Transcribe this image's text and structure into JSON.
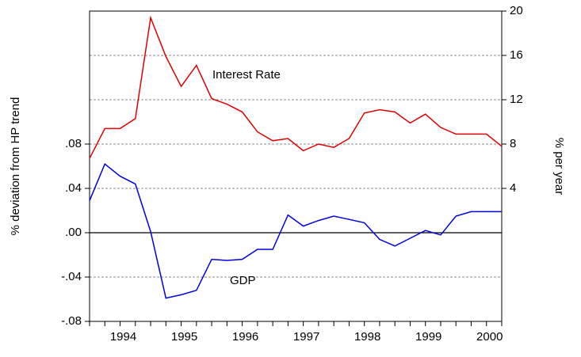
{
  "chart_data": {
    "type": "line",
    "y_label": "% deviation from HP trend",
    "y2_label": "% per year",
    "categories": [
      null,
      null,
      "1994",
      null,
      null,
      null,
      "1995",
      null,
      null,
      null,
      "1996",
      null,
      null,
      null,
      "1997",
      null,
      null,
      null,
      "1998",
      null,
      null,
      null,
      "1999",
      null,
      null,
      null,
      "2000",
      null
    ],
    "series": [
      {
        "name": "Interest Rate",
        "color": "#e00000",
        "axis": "y2",
        "values": [
          6.7,
          9.4,
          9.4,
          10.3,
          19.4,
          15.9,
          13.2,
          15.1,
          12.1,
          11.6,
          10.9,
          9.1,
          8.3,
          8.5,
          7.4,
          8.0,
          7.7,
          8.5,
          10.8,
          11.1,
          10.9,
          9.9,
          10.7,
          9.5,
          8.9,
          8.9,
          8.9,
          7.8
        ]
      },
      {
        "name": "GDP",
        "color": "#0000e0",
        "values": [
          0.029,
          0.062,
          0.051,
          0.044,
          0.001,
          -0.059,
          -0.056,
          -0.052,
          -0.024,
          -0.025,
          -0.024,
          -0.015,
          -0.015,
          0.016,
          0.006,
          0.011,
          0.015,
          0.012,
          0.009,
          -0.006,
          -0.012,
          -0.005,
          0.002,
          -0.002,
          0.015,
          0.019,
          0.019,
          0.019
        ]
      }
    ],
    "ylim": [
      -0.08,
      0.2
    ],
    "yticks": [
      {
        "value": -0.08,
        "label": "-.08"
      },
      {
        "value": -0.04,
        "label": "-.04"
      },
      {
        "value": 0,
        "label": ".00"
      },
      {
        "value": 0.04,
        "label": ".04"
      },
      {
        "value": 0.08,
        "label": ".08"
      }
    ],
    "y2lim": [
      -8,
      20
    ],
    "y2ticks": [
      4,
      8,
      12,
      16,
      20
    ],
    "grid": true
  }
}
